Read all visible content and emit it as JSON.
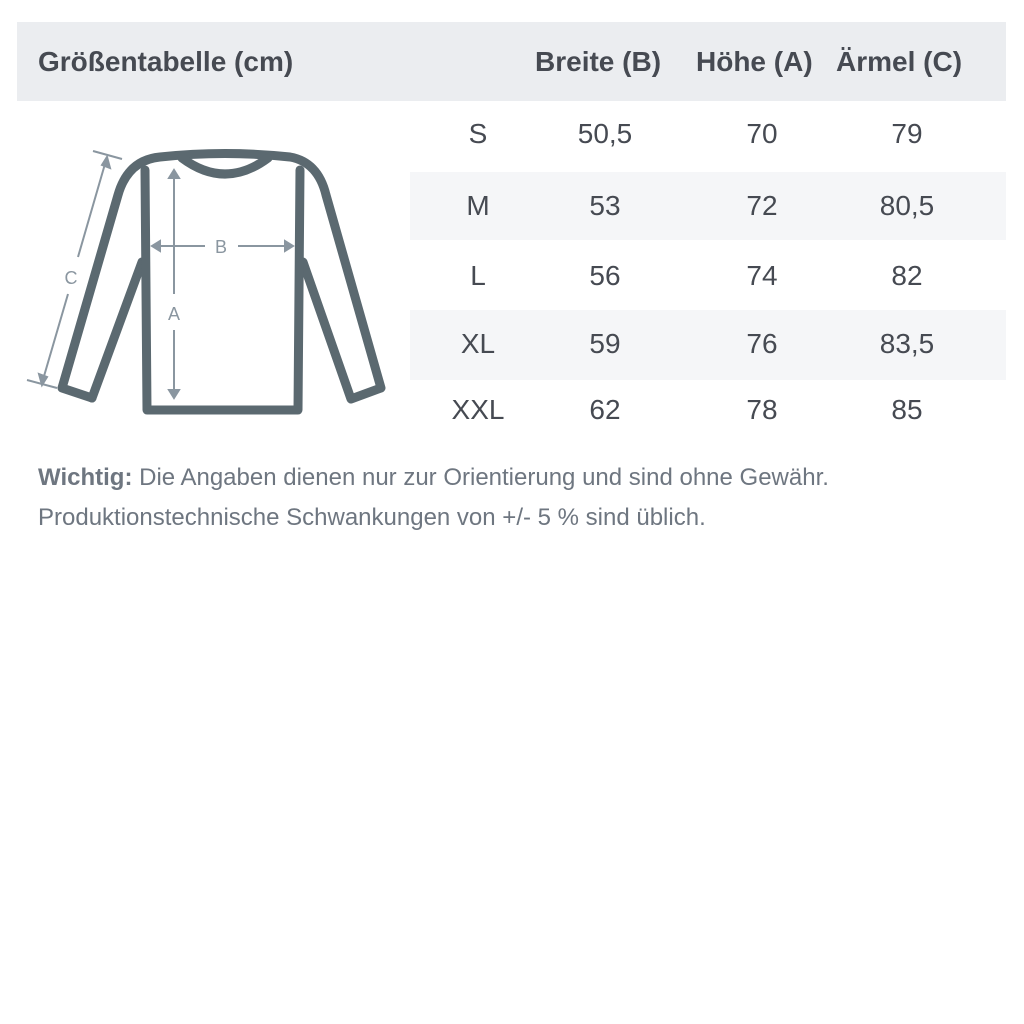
{
  "header": {
    "title": "Größentabelle (cm)",
    "columns": [
      "Breite (B)",
      "Höhe (A)",
      "Ärmel (C)"
    ]
  },
  "rows": [
    {
      "size": "S",
      "breite": "50,5",
      "hoehe": "70",
      "aermel": "79"
    },
    {
      "size": "M",
      "breite": "53",
      "hoehe": "72",
      "aermel": "80,5"
    },
    {
      "size": "L",
      "breite": "56",
      "hoehe": "74",
      "aermel": "82"
    },
    {
      "size": "XL",
      "breite": "59",
      "hoehe": "76",
      "aermel": "83,5"
    },
    {
      "size": "XXL",
      "breite": "62",
      "hoehe": "78",
      "aermel": "85"
    }
  ],
  "diagram": {
    "label_a": "A",
    "label_b": "B",
    "label_c": "C",
    "icon": "longsleeve-shirt-icon"
  },
  "note": {
    "label": "Wichtig:",
    "line1": "Die Angaben dienen nur zur Orientierung und sind ohne Gewähr.",
    "line2": "Produktionstechnische Schwankungen von +/- 5 % sind üblich."
  },
  "colors": {
    "header_bg": "#ebedf0",
    "stripe": "#f5f6f8",
    "outline": "#5b6970",
    "measure": "#8a96a0"
  }
}
